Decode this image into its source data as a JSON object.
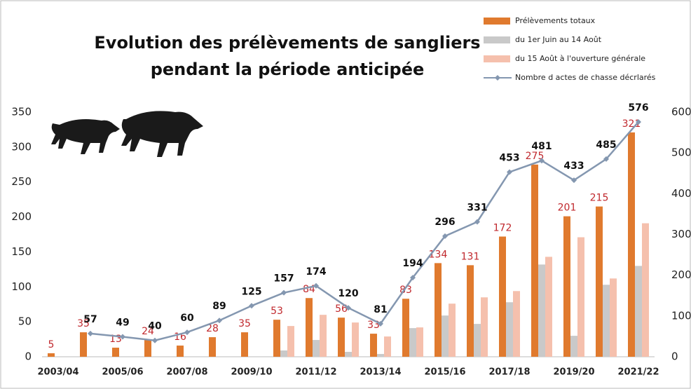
{
  "chart_data": {
    "type": "bar",
    "title": "Evolution des prélèvements  de sangliers",
    "subtitle": "pendant la période anticipée",
    "categories": [
      "2003/04",
      null,
      "2005/06",
      null,
      "2007/08",
      null,
      "2009/10",
      null,
      "2011/12",
      null,
      "2013/14",
      null,
      "2015/16",
      null,
      "2017/18",
      null,
      "2019/20",
      null,
      "2021/22"
    ],
    "ylim": [
      0,
      350
    ],
    "yticks": [
      0,
      50,
      100,
      150,
      200,
      250,
      300,
      350
    ],
    "y2lim": [
      0,
      600
    ],
    "y2ticks": [
      0,
      100,
      200,
      300,
      400,
      500,
      600
    ],
    "series": [
      {
        "name": "Prélèvements totaux",
        "type": "bar",
        "color": "#e07a2e",
        "labels": true,
        "values": [
          5,
          35,
          13,
          24,
          16,
          28,
          35,
          53,
          84,
          56,
          33,
          83,
          134,
          131,
          172,
          275,
          201,
          215,
          321
        ]
      },
      {
        "name": "du 1er Juin au 14 Août",
        "type": "bar",
        "color": "#c9c9c9",
        "labels": false,
        "values": [
          null,
          null,
          null,
          null,
          null,
          null,
          null,
          9,
          24,
          7,
          4,
          41,
          59,
          47,
          78,
          132,
          30,
          103,
          130
        ]
      },
      {
        "name": "du 15 Août à l'ouverture générale",
        "type": "bar",
        "color": "#f5c0ad",
        "labels": false,
        "values": [
          null,
          null,
          null,
          null,
          null,
          null,
          null,
          44,
          60,
          49,
          29,
          42,
          76,
          85,
          94,
          143,
          171,
          112,
          191
        ]
      },
      {
        "name": "Nombre d actes de chasse décrlarés",
        "type": "line",
        "axis": "y2",
        "color": "#8497b0",
        "labels": true,
        "values": [
          null,
          57,
          49,
          40,
          60,
          89,
          125,
          157,
          174,
          120,
          81,
          194,
          296,
          331,
          453,
          481,
          433,
          485,
          576
        ]
      }
    ]
  }
}
